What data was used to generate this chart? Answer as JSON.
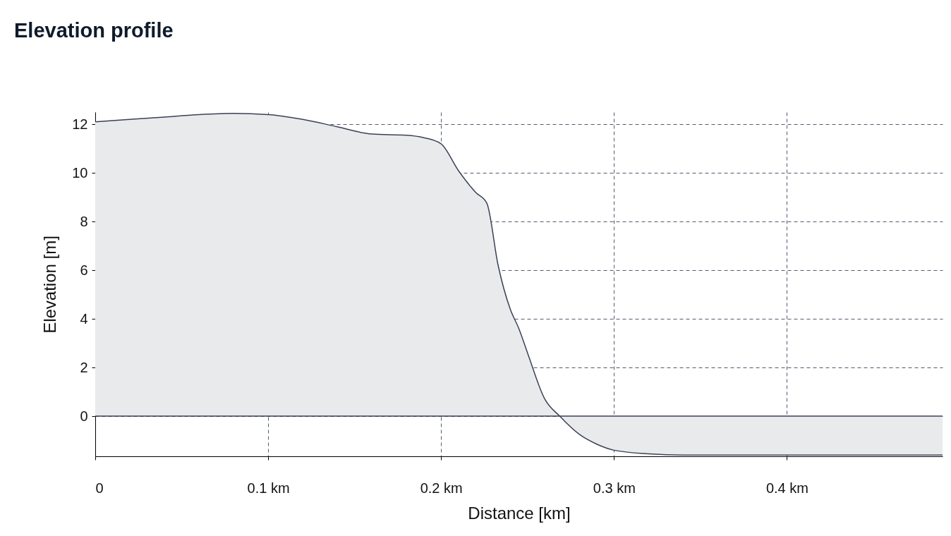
{
  "chart_data": {
    "type": "area",
    "title": "Elevation profile",
    "xlabel": "Distance [km]",
    "ylabel": "Elevation [m]",
    "x": [
      0,
      0.02,
      0.04,
      0.06,
      0.08,
      0.1,
      0.12,
      0.14,
      0.16,
      0.18,
      0.19,
      0.2,
      0.21,
      0.22,
      0.2265,
      0.233,
      0.24,
      0.245,
      0.25,
      0.26,
      0.2686,
      0.28,
      0.29,
      0.3,
      0.32,
      0.34,
      0.4,
      0.49
    ],
    "series": [
      {
        "color": "#3b4256",
        "values": [
          12.1,
          12.2,
          12.3,
          12.4,
          12.45,
          12.4,
          12.2,
          11.9,
          11.6,
          11.55,
          11.45,
          11.2,
          10.1,
          9.2,
          8.75,
          6.2,
          4.4,
          3.6,
          2.6,
          0.7,
          0,
          -0.75,
          -1.15,
          -1.4,
          -1.55,
          -1.6,
          -1.6,
          -1.6
        ]
      }
    ],
    "xlim": [
      0,
      0.49
    ],
    "xticks": [
      0,
      {
        "value": 0.1,
        "label": "0.1 km"
      },
      {
        "value": 0.2,
        "label": "0.2 km"
      },
      {
        "value": 0.3,
        "label": "0.3 km"
      },
      {
        "value": 0.4,
        "label": "0.4 km"
      }
    ],
    "ylim": [
      -1.65,
      12.5
    ],
    "yticks": [
      0,
      2,
      4,
      6,
      8,
      10,
      12
    ],
    "grid": true,
    "ref_lines": [
      {
        "axis": "y",
        "value": 0,
        "color": "#3b4256"
      }
    ]
  }
}
